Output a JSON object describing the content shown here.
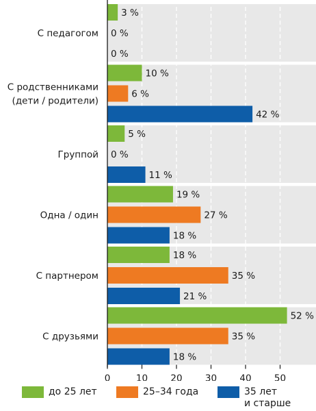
{
  "chart_data": {
    "type": "bar",
    "orientation": "horizontal",
    "categories": [
      "С педагогом",
      "С родственниками\n(дети / родители)",
      "Группой",
      "Одна / один",
      "С партнером",
      "С друзьями"
    ],
    "series": [
      {
        "name": "до 25 лет",
        "color": "#7db83a",
        "values": [
          3,
          10,
          5,
          19,
          18,
          52
        ]
      },
      {
        "name": "25–34 года",
        "color": "#ee7a22",
        "values": [
          0,
          6,
          0,
          27,
          35,
          35
        ]
      },
      {
        "name": "35 лет\nи старше",
        "color": "#0e5da8",
        "values": [
          0,
          42,
          11,
          18,
          21,
          18
        ]
      }
    ],
    "value_suffix": " %",
    "xlim": [
      0,
      60
    ],
    "xticks": [
      0,
      10,
      20,
      30,
      40,
      50
    ],
    "grid": "vertical dashed",
    "category_band_color": "#e8e8e8",
    "legend_position": "bottom"
  }
}
